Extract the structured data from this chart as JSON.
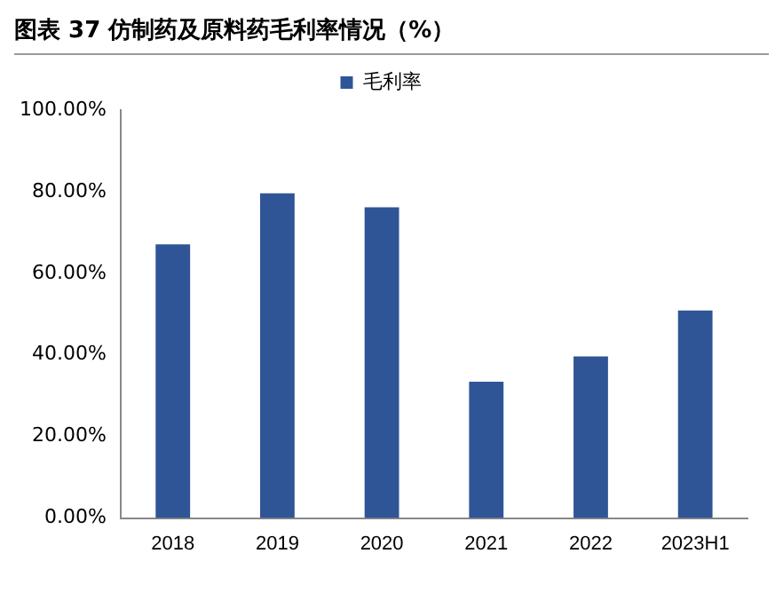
{
  "chart_data": {
    "type": "bar",
    "title": "图表 37 仿制药及原料药毛利率情况（%）",
    "categories": [
      "2018",
      "2019",
      "2020",
      "2021",
      "2022",
      "2023H1"
    ],
    "series": [
      {
        "name": "毛利率",
        "color": "#2f5597",
        "values": [
          67.1,
          79.6,
          76.2,
          33.4,
          39.6,
          50.9
        ]
      }
    ],
    "ylim": [
      0,
      100
    ],
    "yticks": [
      {
        "value": 0,
        "label": "0.00%"
      },
      {
        "value": 20,
        "label": "20.00%"
      },
      {
        "value": 40,
        "label": "40.00%"
      },
      {
        "value": 60,
        "label": "60.00%"
      },
      {
        "value": 80,
        "label": "80.00%"
      },
      {
        "value": 100,
        "label": "100.00%"
      }
    ],
    "grid": false,
    "legend": "top"
  }
}
